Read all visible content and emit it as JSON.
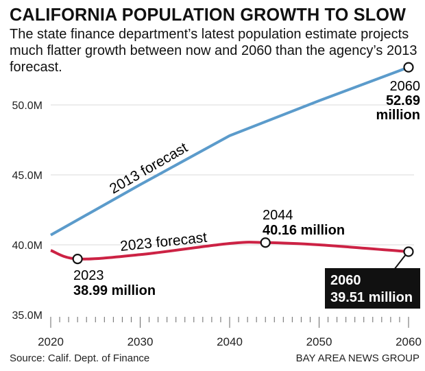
{
  "chart_data": {
    "type": "line",
    "title": "CALIFORNIA POPULATION GROWTH TO SLOW",
    "subtitle": "The state finance department’s latest population estimate projects much flatter growth between now and 2060 than the agency’s 2013 forecast.",
    "xlabel": "",
    "ylabel": "",
    "xlim": [
      2020,
      2060
    ],
    "ylim": [
      35,
      53
    ],
    "x_ticks": [
      "2020",
      "2030",
      "2040",
      "2050",
      "2060"
    ],
    "x_tick_values": [
      2020,
      2030,
      2040,
      2050,
      2060
    ],
    "y_ticks": [
      "35.0M",
      "40.0M",
      "45.0M",
      "50.0M"
    ],
    "y_tick_values": [
      35,
      40,
      45,
      50
    ],
    "grid": true,
    "series": [
      {
        "name": "2013 forecast",
        "color": "#5b9bcb",
        "x": [
          2020,
          2030,
          2040,
          2050,
          2060
        ],
        "values": [
          40.7,
          44.3,
          47.8,
          50.3,
          52.69
        ]
      },
      {
        "name": "2023 forecast",
        "color": "#cc2244",
        "x": [
          2020,
          2023,
          2030,
          2040,
          2044,
          2050,
          2060
        ],
        "values": [
          39.6,
          38.99,
          39.3,
          40.1,
          40.16,
          40.0,
          39.51
        ]
      }
    ],
    "annotations": [
      {
        "year": "2060",
        "value": "52.69",
        "unit": "million"
      },
      {
        "year": "2044",
        "value": "40.16 million"
      },
      {
        "year": "2023",
        "value": "38.99 million"
      },
      {
        "year": "2060",
        "value": "39.51 million"
      }
    ],
    "markers": [
      {
        "series": 0,
        "x": 2060,
        "y": 52.69
      },
      {
        "series": 1,
        "x": 2023,
        "y": 38.99
      },
      {
        "series": 1,
        "x": 2044,
        "y": 40.16
      },
      {
        "series": 1,
        "x": 2060,
        "y": 39.51
      }
    ]
  },
  "footer": {
    "source": "Source: Calif. Dept. of Finance",
    "credit": "BAY AREA NEWS GROUP"
  }
}
